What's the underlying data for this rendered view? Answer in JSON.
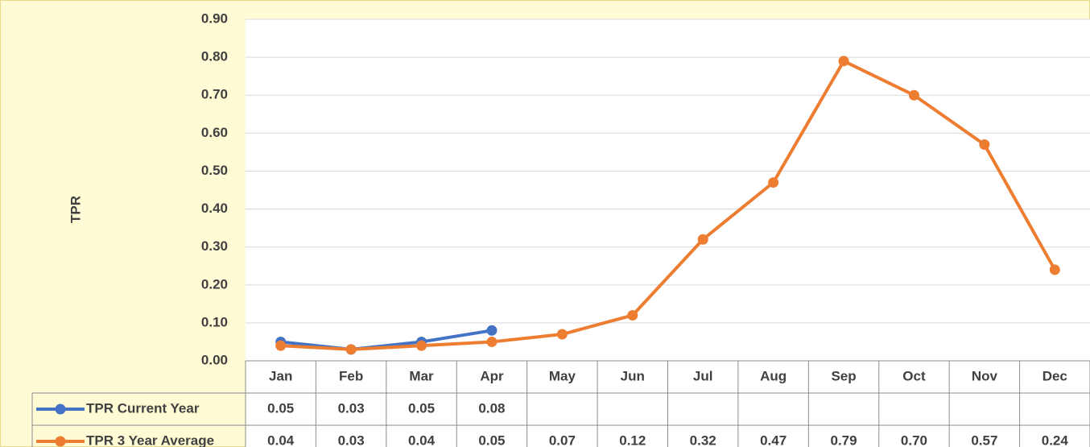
{
  "chart_data": {
    "type": "line",
    "y_label": "TPR",
    "categories": [
      "Jan",
      "Feb",
      "Mar",
      "Apr",
      "May",
      "Jun",
      "Jul",
      "Aug",
      "Sep",
      "Oct",
      "Nov",
      "Dec"
    ],
    "series": [
      {
        "name": "TPR Current Year",
        "color": "#4472c4",
        "values": [
          0.05,
          0.03,
          0.05,
          0.08,
          null,
          null,
          null,
          null,
          null,
          null,
          null,
          null
        ],
        "value_labels": [
          "0.05",
          "0.03",
          "0.05",
          "0.08",
          null,
          null,
          null,
          null,
          null,
          null,
          null,
          null
        ]
      },
      {
        "name": "TPR 3 Year Average",
        "color": "#ed7d31",
        "values": [
          0.04,
          0.03,
          0.04,
          0.05,
          0.07,
          0.12,
          0.32,
          0.47,
          0.79,
          0.7,
          0.57,
          0.24
        ],
        "value_labels": [
          "0.04",
          "0.03",
          "0.04",
          "0.05",
          "0.07",
          "0.12",
          "0.32",
          "0.47",
          "0.79",
          "0.70",
          "0.57",
          "0.24"
        ]
      }
    ],
    "ylim": [
      0,
      0.9
    ],
    "yticks": [
      {
        "value": 0,
        "label": "0.00"
      },
      {
        "value": 0.1,
        "label": "0.10"
      },
      {
        "value": 0.2,
        "label": "0.20"
      },
      {
        "value": 0.3,
        "label": "0.30"
      },
      {
        "value": 0.4,
        "label": "0.40"
      },
      {
        "value": 0.5,
        "label": "0.50"
      },
      {
        "value": 0.6,
        "label": "0.60"
      },
      {
        "value": 0.7,
        "label": "0.70"
      },
      {
        "value": 0.8,
        "label": "0.80"
      },
      {
        "value": 0.9,
        "label": "0.90"
      }
    ],
    "grid": true,
    "data_table": true
  }
}
